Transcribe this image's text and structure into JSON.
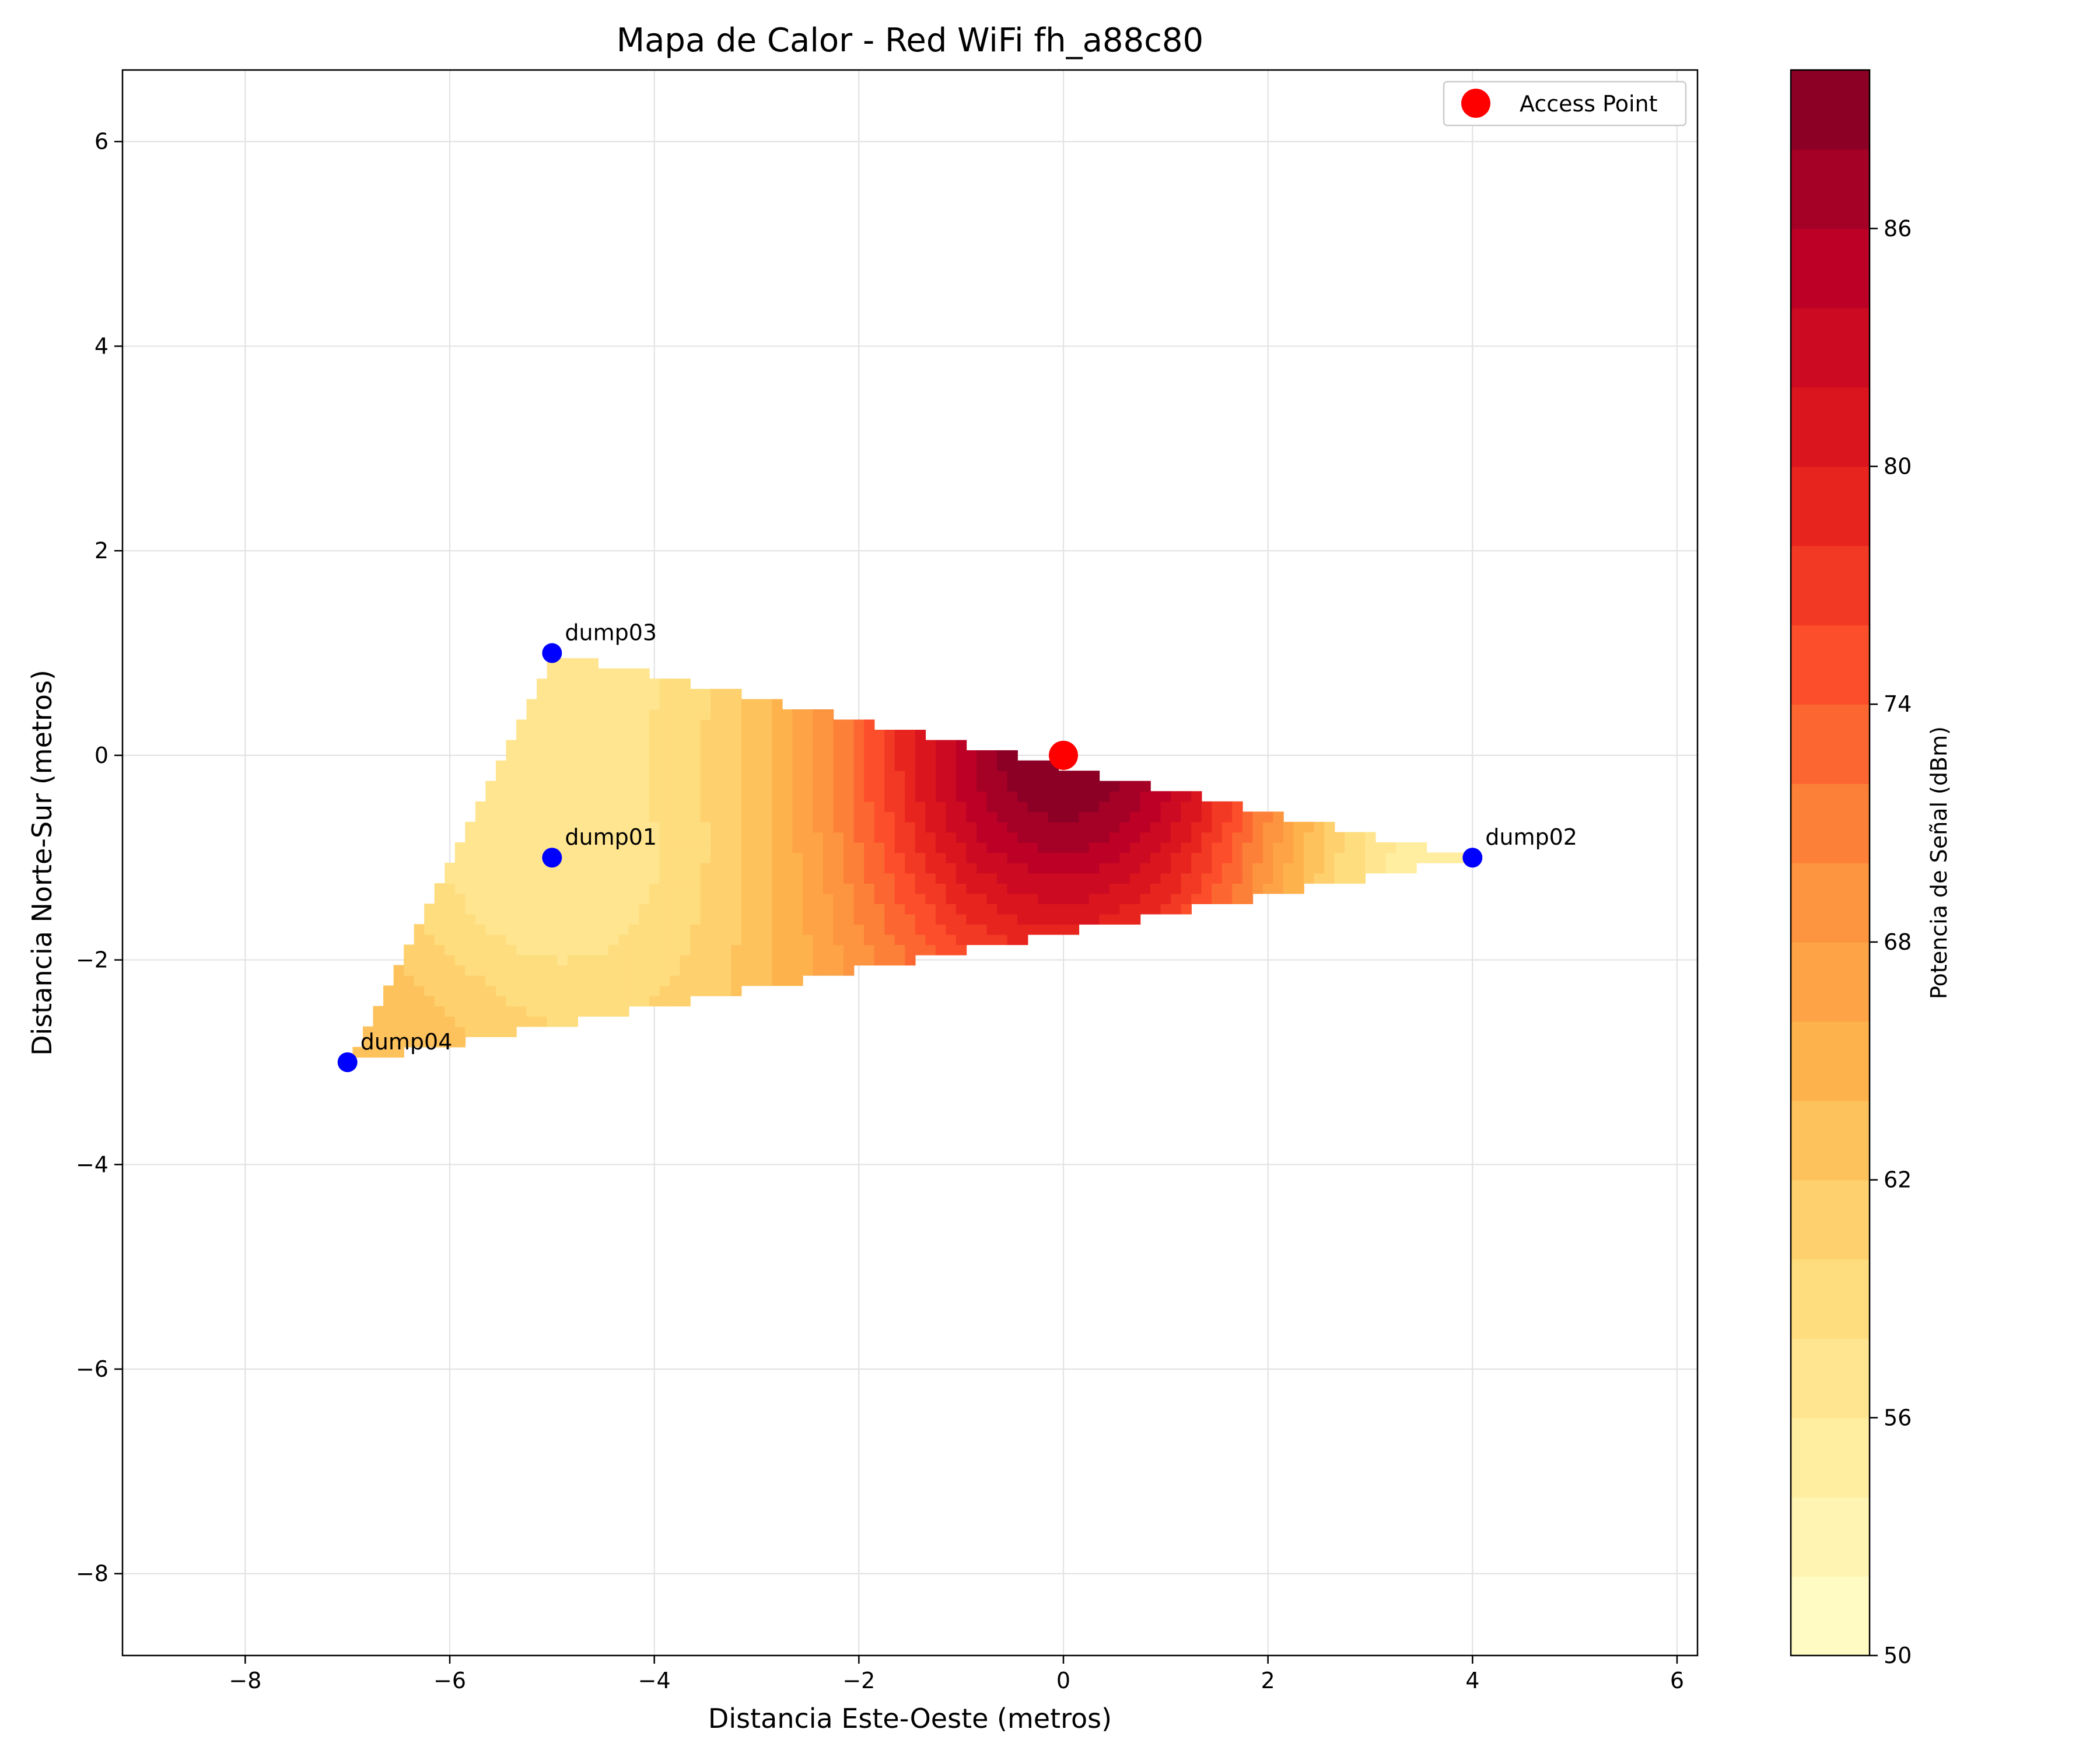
{
  "chart_data": {
    "type": "contourf",
    "title": "Mapa de Calor - Red WiFi fh_a88c80",
    "xlabel": "Distancia Este-Oeste (metros)",
    "ylabel": "Distancia Norte-Sur (metros)",
    "xlim": [
      -9.2,
      6.2
    ],
    "ylim": [
      -8.8,
      6.7
    ],
    "x_ticks": [
      -8,
      -6,
      -4,
      -2,
      0,
      2,
      4,
      6
    ],
    "y_ticks": [
      -8,
      -6,
      -4,
      -2,
      0,
      2,
      4,
      6
    ],
    "grid": true,
    "legend": {
      "placement": "top-right",
      "entries": [
        {
          "label": "Access Point",
          "color": "#ff0000"
        }
      ]
    },
    "access_point": {
      "x": 0,
      "y": 0,
      "label": "Access Point",
      "color": "#ff0000"
    },
    "measurement_points": [
      {
        "name": "dump01",
        "x": -5,
        "y": -1,
        "dbm": 56
      },
      {
        "name": "dump02",
        "x": 4,
        "y": -1,
        "dbm": 54
      },
      {
        "name": "dump03",
        "x": -5,
        "y": 1,
        "dbm": 56
      },
      {
        "name": "dump04",
        "x": -7,
        "y": -3,
        "dbm": 64
      }
    ],
    "interpolated_region": {
      "hull": [
        "dump03",
        "dump02",
        "dump04"
      ]
    },
    "colorbar": {
      "label": "Potencia de Señal (dBm)",
      "min": 50,
      "max": 90,
      "ticks": [
        50,
        56,
        62,
        68,
        74,
        80,
        86
      ],
      "levels": 20,
      "colormap": [
        "#ffffcc",
        "#ffeda0",
        "#fed976",
        "#feb24c",
        "#fd8d3c",
        "#fc4e2a",
        "#e31a1c",
        "#bd0026",
        "#800026"
      ]
    }
  }
}
